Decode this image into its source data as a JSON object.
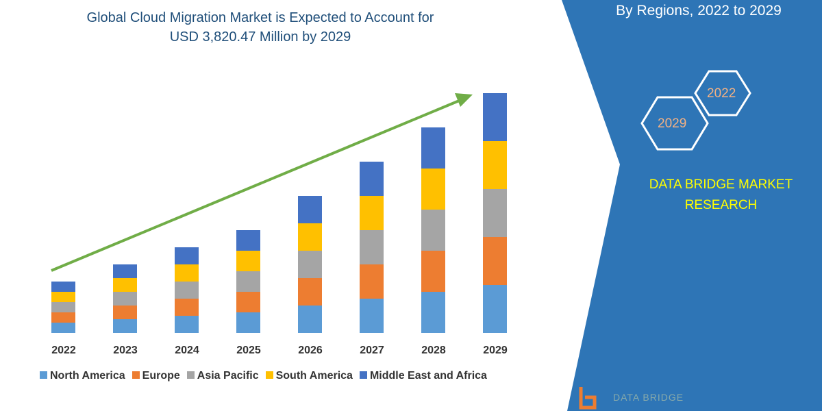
{
  "title_line1": "Global Cloud Migration Market is Expected to Account for",
  "title_line2": "USD 3,820.47 Million by 2029",
  "side_title": "By Regions, 2022 to 2029",
  "hex_labels": [
    "2022",
    "2029"
  ],
  "brand_line1": "DATA BRIDGE MARKET",
  "brand_line2": "RESEARCH",
  "logo_text": "DATA BRIDGE",
  "colors": {
    "panel": "#2e75b6",
    "arrow": "#70ad47"
  },
  "chart_data": {
    "type": "bar",
    "stacked": true,
    "categories": [
      "2022",
      "2023",
      "2024",
      "2025",
      "2026",
      "2027",
      "2028",
      "2029"
    ],
    "series": [
      {
        "name": "North America",
        "color": "#5b9bd5",
        "values": [
          15,
          20,
          25,
          30,
          40,
          50,
          60,
          70
        ]
      },
      {
        "name": "Europe",
        "color": "#ed7d31",
        "values": [
          15,
          20,
          25,
          30,
          40,
          50,
          60,
          70
        ]
      },
      {
        "name": "Asia Pacific",
        "color": "#a5a5a5",
        "values": [
          15,
          20,
          25,
          30,
          40,
          50,
          60,
          70
        ]
      },
      {
        "name": "South America",
        "color": "#ffc000",
        "values": [
          15,
          20,
          25,
          30,
          40,
          50,
          60,
          70
        ]
      },
      {
        "name": "Middle East and Africa",
        "color": "#4472c4",
        "values": [
          15,
          20,
          25,
          30,
          40,
          50,
          60,
          70
        ]
      }
    ],
    "legend": "bottom",
    "grid": false,
    "trend_arrow": true
  }
}
